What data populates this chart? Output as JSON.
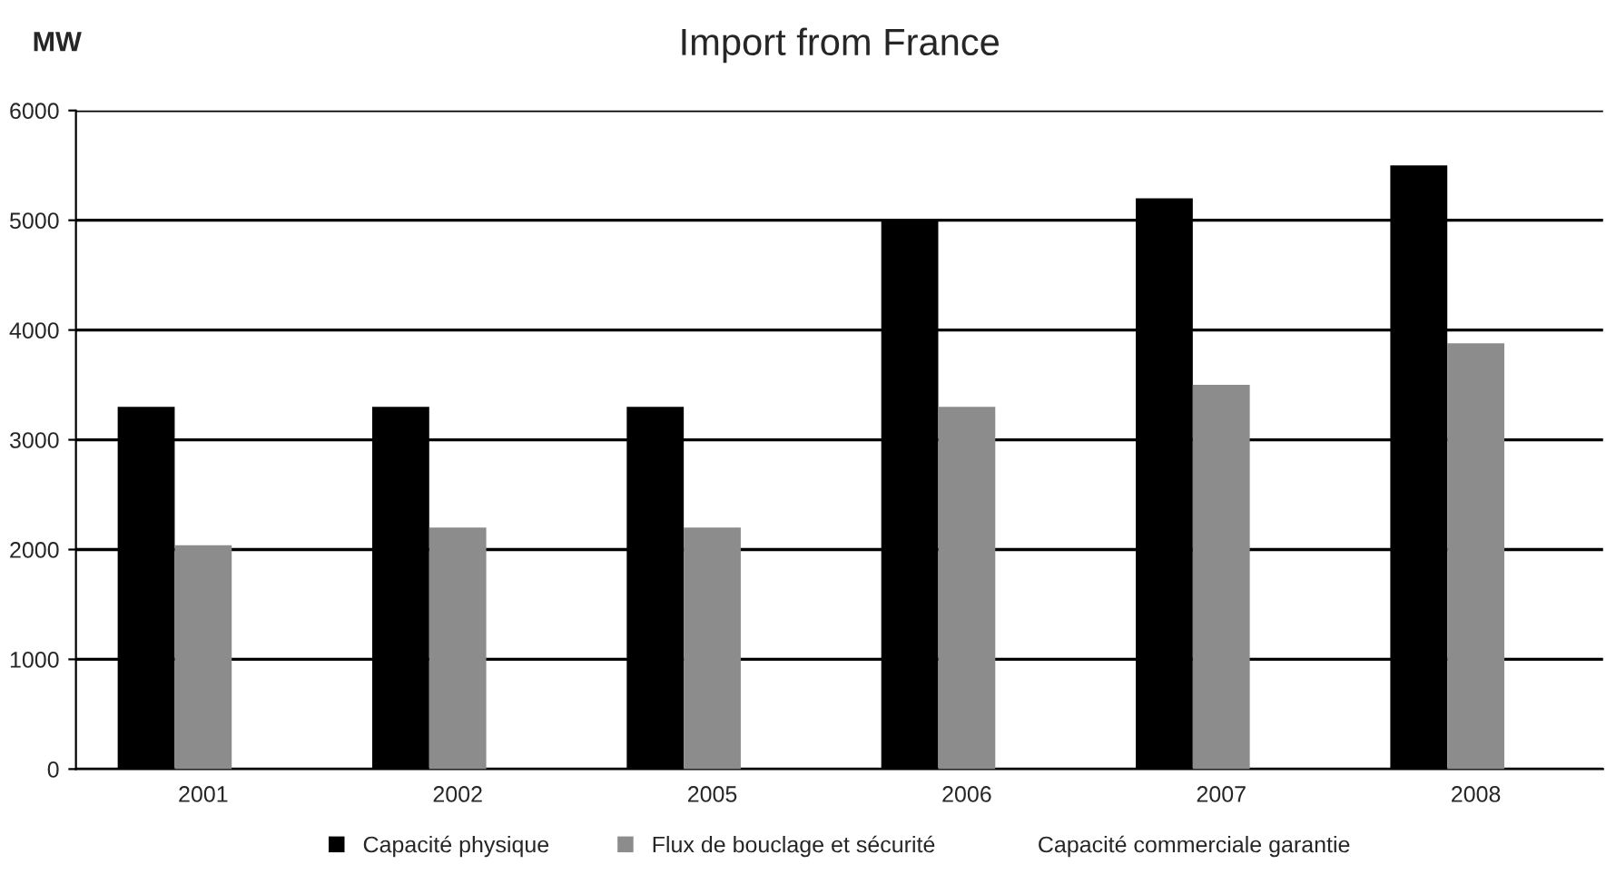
{
  "chart_data": {
    "type": "bar",
    "title": "Import from France",
    "ylabel": "MW",
    "categories": [
      "2001",
      "2002",
      "2005",
      "2006",
      "2007",
      "2008"
    ],
    "series": [
      {
        "name": "Capacité physique",
        "color": "#000000",
        "values": [
          3300,
          3300,
          3300,
          5000,
          5200,
          5500
        ]
      },
      {
        "name": "Flux de bouclage et sécurité",
        "color": "#8c8c8c",
        "values": [
          2040,
          2200,
          2200,
          3300,
          3500,
          3880
        ]
      },
      {
        "name": "Capacité commerciale garantie",
        "values": [
          null,
          null,
          null,
          null,
          null,
          null
        ]
      }
    ],
    "ylim": [
      0,
      6000
    ],
    "yticks": [
      0,
      1000,
      2000,
      3000,
      4000,
      5000,
      6000
    ],
    "grid": "y",
    "legend": "bottom"
  }
}
